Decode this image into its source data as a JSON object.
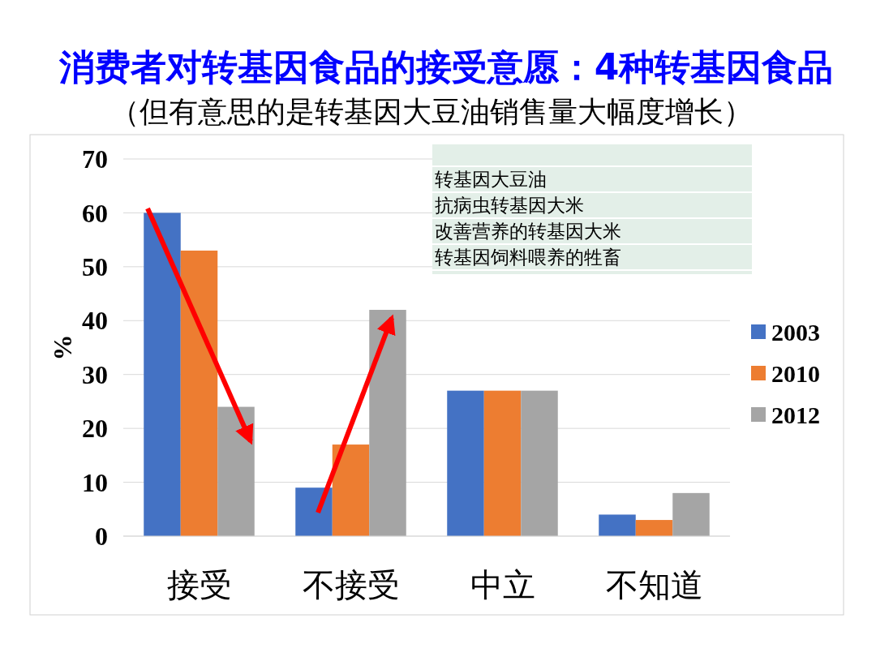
{
  "chart_data": {
    "type": "bar",
    "title": "消费者对转基因食品的接受意愿：4种转基因食品",
    "subtitle": "（但有意思的是转基因大豆油销售量大幅度增长）",
    "ylabel": "%",
    "categories": [
      "接受",
      "不接受",
      "中立",
      "不知道"
    ],
    "series": [
      {
        "name": "2003",
        "color": "#4472c4",
        "values": [
          60,
          9,
          27,
          4
        ]
      },
      {
        "name": "2010",
        "color": "#ed7d31",
        "values": [
          53,
          17,
          27,
          3
        ]
      },
      {
        "name": "2012",
        "color": "#a5a5a5",
        "values": [
          24,
          42,
          27,
          8
        ]
      }
    ],
    "ylim": [
      0,
      70
    ],
    "yticks": [
      0,
      10,
      20,
      30,
      40,
      50,
      60,
      70
    ],
    "grid": "y",
    "legend": "right",
    "annotations": [
      "转基因大豆油",
      "抗病虫转基因大米",
      "改善营养的转基因大米",
      "转基因饲料喂养的牲畜"
    ]
  }
}
